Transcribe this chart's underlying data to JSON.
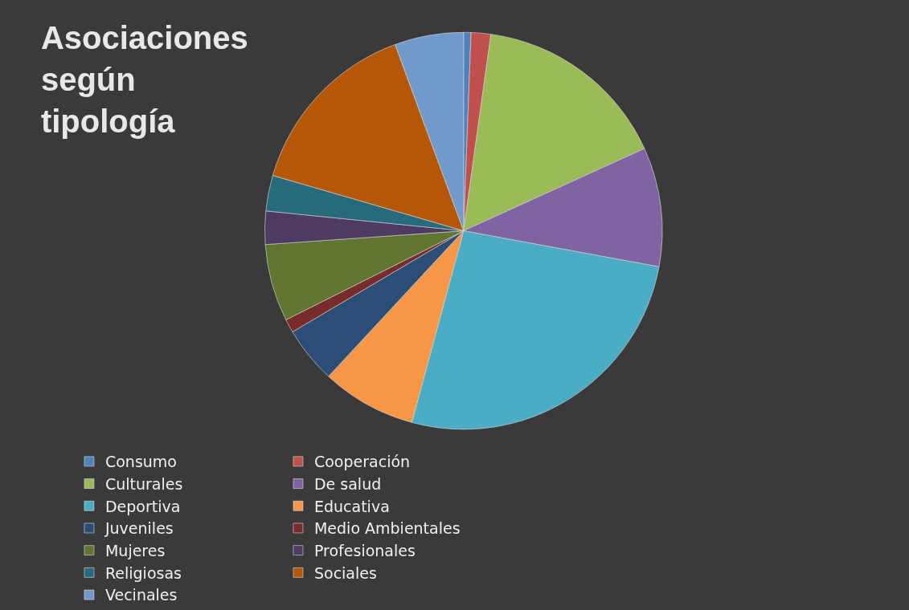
{
  "chart_data": {
    "type": "pie",
    "title": "Asociaciones según tipología",
    "categories": [
      "Consumo",
      "Cooperación",
      "Culturales",
      "De salud",
      "Deportiva",
      "Educativa",
      "Juveniles",
      "Medio Ambientales",
      "Mujeres",
      "Profesionales",
      "Religiosas",
      "Sociales",
      "Vecinales"
    ],
    "values": [
      0.6,
      1.6,
      16.0,
      9.7,
      26.3,
      7.7,
      4.6,
      1.1,
      6.3,
      2.7,
      2.9,
      14.9,
      5.6
    ],
    "colors": [
      "#4f81bd",
      "#c0504d",
      "#9bbb59",
      "#8064a2",
      "#4bacc6",
      "#f79646",
      "#2c4d75",
      "#772c2a",
      "#5f7530",
      "#4d3b62",
      "#276a7c",
      "#b65708",
      "#729aca"
    ],
    "legend": "bottom"
  }
}
